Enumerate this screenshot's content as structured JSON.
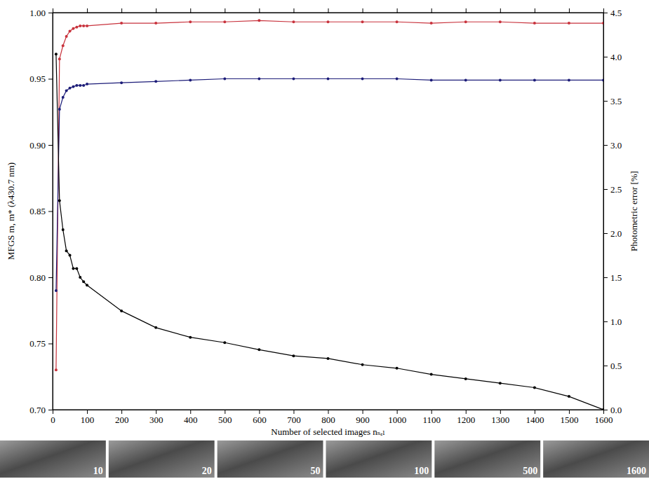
{
  "chart_data": {
    "type": "line",
    "x_label": "Number of selected images nₛₑₗ",
    "y_label": "MFGS  m, m*  (λ430.7 nm)",
    "y2_label": "Photometric error  [%]",
    "x": [
      10,
      20,
      30,
      40,
      50,
      60,
      70,
      80,
      90,
      100,
      200,
      300,
      400,
      500,
      600,
      700,
      800,
      900,
      1000,
      1100,
      1200,
      1300,
      1400,
      1500,
      1600
    ],
    "xlim": [
      0,
      1600
    ],
    "xticks": [
      0,
      100,
      200,
      300,
      400,
      500,
      600,
      700,
      800,
      900,
      1000,
      1100,
      1200,
      1300,
      1400,
      1500,
      1600
    ],
    "ylim": [
      0.7,
      1.0
    ],
    "yticks": [
      {
        "value": 0.7,
        "label": "0.70"
      },
      0.75,
      {
        "value": 0.8,
        "label": "0.80"
      },
      0.85,
      {
        "value": 0.9,
        "label": "0.90"
      },
      0.95,
      {
        "value": 1.0,
        "label": "1.00"
      }
    ],
    "y2lim": [
      0,
      4.5
    ],
    "y2ticks": [
      {
        "value": 0,
        "label": "0.0"
      },
      0.5,
      {
        "value": 1,
        "label": "1.0"
      },
      1.5,
      {
        "value": 2,
        "label": "2.0"
      },
      2.5,
      {
        "value": 3,
        "label": "3.0"
      },
      3.5,
      {
        "value": 4,
        "label": "4.0"
      },
      4.5
    ],
    "series": [
      {
        "color": "#c8323c",
        "marker": "circle",
        "line_style": "solid",
        "values": [
          0.73,
          0.965,
          0.975,
          0.982,
          0.986,
          0.988,
          0.989,
          0.99,
          0.99,
          0.99,
          0.992,
          0.992,
          0.993,
          0.993,
          0.994,
          0.993,
          0.993,
          0.993,
          0.993,
          0.992,
          0.993,
          0.993,
          0.992,
          0.992,
          0.992
        ]
      },
      {
        "color": "#1c1c78",
        "marker": "circle",
        "line_style": "solid",
        "values": [
          0.79,
          0.927,
          0.936,
          0.941,
          0.943,
          0.944,
          0.945,
          0.945,
          0.945,
          0.946,
          0.947,
          0.948,
          0.949,
          0.95,
          0.95,
          0.95,
          0.95,
          0.95,
          0.95,
          0.949,
          0.949,
          0.949,
          0.949,
          0.949,
          0.949
        ]
      },
      {
        "color": "#000000",
        "marker": "circle",
        "line_style": "solid",
        "axis": "y2",
        "values": [
          4.03,
          2.37,
          2.04,
          1.8,
          1.75,
          1.6,
          1.6,
          1.5,
          1.45,
          1.41,
          1.12,
          0.93,
          0.82,
          0.76,
          0.68,
          0.61,
          0.58,
          0.51,
          0.47,
          0.4,
          0.35,
          0.3,
          0.25,
          0.15,
          0.0
        ]
      }
    ],
    "image_labels": [
      10,
      20,
      50,
      100,
      500,
      1600
    ]
  }
}
